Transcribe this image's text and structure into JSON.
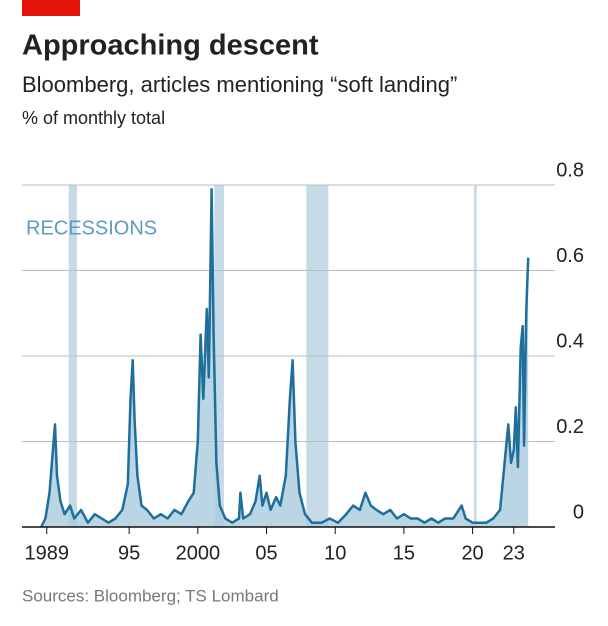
{
  "chart_data": {
    "type": "line",
    "title": "Approaching descent",
    "subtitle": "Bloomberg, articles mentioning “soft landing”",
    "y_label": "% of monthly total",
    "source": "Sources: Bloomberg; TS Lombard",
    "annotation": "RECESSIONS",
    "recessions": [
      [
        1990.6,
        1991.2
      ],
      [
        2001.2,
        2001.9
      ],
      [
        2007.9,
        2009.5
      ],
      [
        2020.1,
        2020.3
      ]
    ],
    "xlim": [
      1987.2,
      2026
    ],
    "ylim": [
      0,
      0.8
    ],
    "xticks": [
      1989,
      {
        "value": 1995,
        "label": "95"
      },
      2000,
      {
        "value": 2005,
        "label": "05"
      },
      {
        "value": 2010,
        "label": "10"
      },
      {
        "value": 2015,
        "label": "15"
      },
      {
        "value": 2020,
        "label": "20"
      },
      {
        "value": 2023,
        "label": "23"
      }
    ],
    "yticks": [
      0,
      0.2,
      0.4,
      0.6,
      0.8
    ],
    "grid": true,
    "series": [
      {
        "name": "soft landing",
        "color": "#1f6e9c",
        "fill": "#a9cadd",
        "x": [
          1988.6,
          1988.9,
          1989.2,
          1989.45,
          1989.6,
          1989.75,
          1990.0,
          1990.3,
          1990.7,
          1991.0,
          1991.5,
          1992.0,
          1992.5,
          1993.0,
          1993.5,
          1994.0,
          1994.5,
          1994.9,
          1995.1,
          1995.26,
          1995.4,
          1995.6,
          1995.9,
          1996.3,
          1996.8,
          1997.3,
          1997.8,
          1998.3,
          1998.8,
          1999.3,
          1999.7,
          2000.0,
          2000.2,
          2000.4,
          2000.65,
          2000.8,
          2001.0,
          2001.15,
          2001.35,
          2001.6,
          2002.0,
          2002.5,
          2003.0,
          2003.1,
          2003.3,
          2003.8,
          2004.2,
          2004.5,
          2004.7,
          2005.0,
          2005.3,
          2005.7,
          2006.0,
          2006.4,
          2006.7,
          2006.9,
          2007.1,
          2007.4,
          2007.8,
          2008.3,
          2009.0,
          2009.6,
          2010.2,
          2010.8,
          2011.3,
          2011.8,
          2012.2,
          2012.6,
          2013.0,
          2013.5,
          2014.0,
          2014.5,
          2015.0,
          2015.5,
          2016.0,
          2016.5,
          2017.0,
          2017.5,
          2018.0,
          2018.6,
          2019.2,
          2019.5,
          2020.0,
          2020.5,
          2021.0,
          2021.5,
          2022.0,
          2022.3,
          2022.6,
          2022.8,
          2023.0,
          2023.15,
          2023.3,
          2023.5,
          2023.65,
          2023.75,
          2023.9,
          2024.05
        ],
        "values": [
          0,
          0.02,
          0.08,
          0.18,
          0.24,
          0.12,
          0.06,
          0.03,
          0.05,
          0.02,
          0.04,
          0.01,
          0.03,
          0.02,
          0.01,
          0.02,
          0.04,
          0.1,
          0.3,
          0.39,
          0.25,
          0.12,
          0.05,
          0.04,
          0.02,
          0.03,
          0.02,
          0.04,
          0.03,
          0.06,
          0.08,
          0.2,
          0.45,
          0.3,
          0.51,
          0.35,
          0.79,
          0.45,
          0.15,
          0.05,
          0.02,
          0.01,
          0.02,
          0.08,
          0.02,
          0.03,
          0.06,
          0.12,
          0.05,
          0.08,
          0.04,
          0.07,
          0.05,
          0.12,
          0.3,
          0.39,
          0.2,
          0.08,
          0.03,
          0.01,
          0.01,
          0.02,
          0.01,
          0.03,
          0.05,
          0.04,
          0.08,
          0.05,
          0.04,
          0.03,
          0.04,
          0.02,
          0.03,
          0.02,
          0.02,
          0.01,
          0.02,
          0.01,
          0.02,
          0.02,
          0.05,
          0.02,
          0.01,
          0.01,
          0.01,
          0.02,
          0.04,
          0.14,
          0.24,
          0.15,
          0.18,
          0.28,
          0.14,
          0.42,
          0.47,
          0.19,
          0.5,
          0.63
        ]
      }
    ]
  }
}
